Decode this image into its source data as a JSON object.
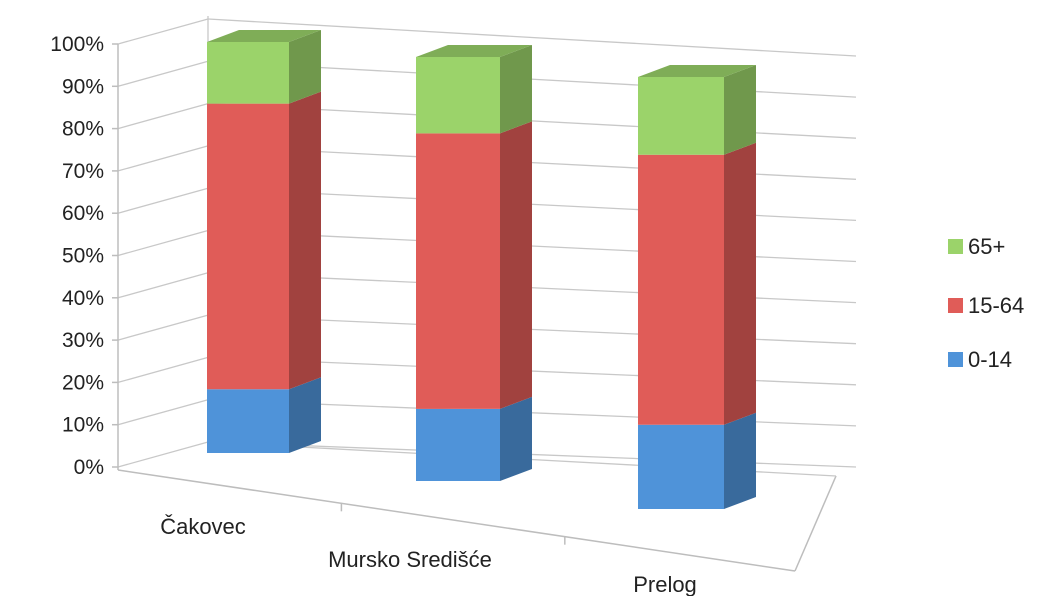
{
  "chart_data": {
    "type": "bar",
    "stacked": "100%",
    "categories": [
      "Čakovec",
      "Mursko Središće",
      "Prelog"
    ],
    "series": [
      {
        "name": "0-14",
        "values": [
          15.5,
          17.0,
          19.5
        ],
        "color": "#4f93d9"
      },
      {
        "name": "15-64",
        "values": [
          69.5,
          65.0,
          62.5
        ],
        "color": "#e05c58"
      },
      {
        "name": "65+",
        "values": [
          15.0,
          18.0,
          18.0
        ],
        "color": "#9bd36a"
      }
    ],
    "y_ticks": [
      "0%",
      "10%",
      "20%",
      "30%",
      "40%",
      "50%",
      "60%",
      "70%",
      "80%",
      "90%",
      "100%"
    ],
    "ylim": [
      0,
      100
    ],
    "grid": true,
    "legend_position": "right",
    "perspective": "3d"
  }
}
